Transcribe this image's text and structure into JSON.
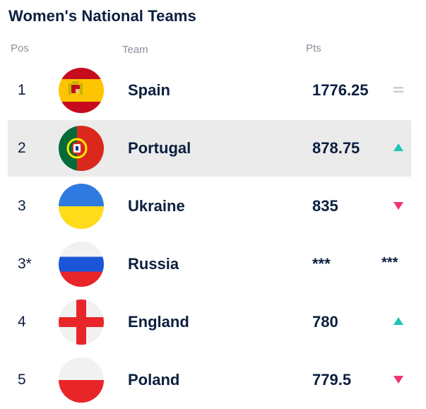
{
  "title": "Women's National Teams",
  "columns": {
    "pos": "Pos",
    "team": "Team",
    "pts": "Pts"
  },
  "rows": [
    {
      "pos": "1",
      "team": "Spain",
      "pts": "1776.25",
      "trend": "same",
      "flag": "spain-flag-icon"
    },
    {
      "pos": "2",
      "team": "Portugal",
      "pts": "878.75",
      "trend": "up",
      "flag": "portugal-flag-icon"
    },
    {
      "pos": "3",
      "team": "Ukraine",
      "pts": "835",
      "trend": "down",
      "flag": "ukraine-flag-icon"
    },
    {
      "pos": "3*",
      "team": "Russia",
      "pts": "***",
      "trend": "***",
      "flag": "russia-flag-icon"
    },
    {
      "pos": "4",
      "team": "England",
      "pts": "780",
      "trend": "up",
      "flag": "england-flag-icon"
    },
    {
      "pos": "5",
      "team": "Poland",
      "pts": "779.5",
      "trend": "down",
      "flag": "poland-flag-icon"
    }
  ],
  "colors": {
    "text": "#0b1f3f",
    "header": "#8a909c",
    "up": "#1ec6b4",
    "down": "#f0346c",
    "same": "#c9ccd2",
    "highlight": "#ebebeb"
  }
}
